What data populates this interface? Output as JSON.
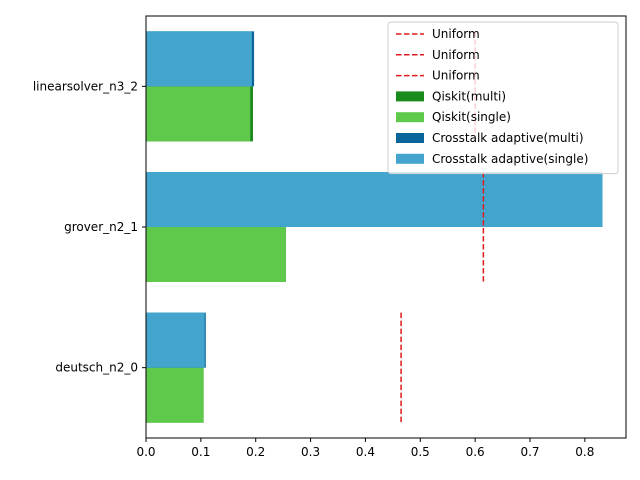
{
  "chart_data": {
    "type": "bar",
    "orientation": "horizontal",
    "categories": [
      "deutsch_n2_0",
      "grover_n2_1",
      "linearsolver_n3_2"
    ],
    "xlim": [
      0,
      0.875
    ],
    "xticks": [
      "0.0",
      "0.1",
      "0.2",
      "0.3",
      "0.4",
      "0.5",
      "0.6",
      "0.7",
      "0.8"
    ],
    "grid": false,
    "legend_position": "top-right",
    "series": [
      {
        "name": "Qiskit(multi)",
        "color": "#1a8a1a",
        "values": [
          0.105,
          0.255,
          0.195
        ]
      },
      {
        "name": "Qiskit(single)",
        "color": "#5ec94b",
        "values": [
          0.105,
          0.255,
          0.19
        ]
      },
      {
        "name": "Crosstalk adaptive(multi)",
        "color": "#09659a",
        "values": [
          0.109,
          0.832,
          0.197
        ]
      },
      {
        "name": "Crosstalk adaptive(single)",
        "color": "#43a5cd",
        "values": [
          0.107,
          0.832,
          0.193
        ]
      }
    ],
    "uniform_lines": [
      {
        "name": "Uniform",
        "color": "#e31a1c",
        "value": 0.465
      },
      {
        "name": "Uniform",
        "color": "#e31a1c",
        "value": 0.615
      },
      {
        "name": "Uniform",
        "color": "#e31a1c",
        "value": 0.6
      }
    ]
  }
}
